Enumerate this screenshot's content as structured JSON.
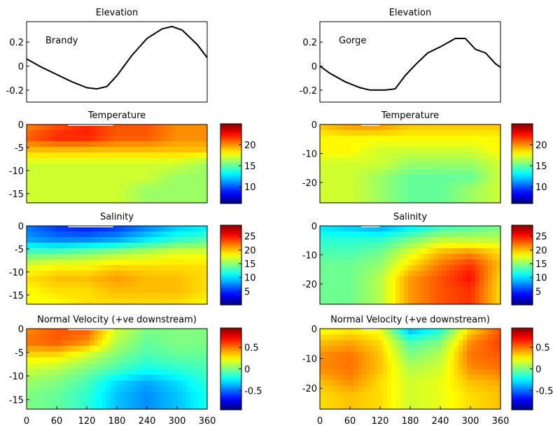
{
  "chart_data": [
    {
      "type": "line",
      "title": "Elevation",
      "annotation": "Brandy",
      "x": [
        0,
        30,
        60,
        90,
        120,
        140,
        160,
        180,
        210,
        240,
        270,
        290,
        310,
        340,
        360
      ],
      "y": [
        0.06,
        -0.01,
        -0.07,
        -0.13,
        -0.18,
        -0.19,
        -0.17,
        -0.08,
        0.09,
        0.23,
        0.31,
        0.33,
        0.3,
        0.18,
        0.07
      ],
      "xlim": [
        0,
        360
      ],
      "ylim": [
        -0.3,
        0.37
      ],
      "yticks": [
        0.2,
        0,
        -0.2
      ]
    },
    {
      "type": "line",
      "title": "Elevation",
      "annotation": "Gorge",
      "x": [
        0,
        20,
        50,
        80,
        100,
        130,
        150,
        170,
        190,
        215,
        240,
        270,
        290,
        310,
        330,
        350,
        360
      ],
      "y": [
        0.0,
        -0.06,
        -0.13,
        -0.18,
        -0.2,
        -0.2,
        -0.19,
        -0.08,
        0.01,
        0.11,
        0.16,
        0.23,
        0.23,
        0.14,
        0.11,
        0.02,
        -0.01
      ],
      "xlim": [
        0,
        360
      ],
      "ylim": [
        -0.3,
        0.37
      ],
      "yticks": [
        0.2,
        0,
        -0.2
      ]
    },
    {
      "type": "heatmap",
      "title": "Temperature",
      "xlim": [
        0,
        360
      ],
      "ylim": [
        -17,
        0
      ],
      "yticks": [
        0,
        -5,
        -10,
        -15
      ],
      "colorbar": {
        "range": [
          6,
          25
        ],
        "ticks": [
          20,
          15,
          10
        ]
      },
      "rows_depth": [
        0,
        -3,
        -6,
        -9,
        -12,
        -15,
        -17
      ],
      "cols_x": [
        0,
        60,
        120,
        180,
        240,
        300,
        360
      ],
      "values": [
        [
          20,
          21,
          22,
          21,
          21,
          20,
          20
        ],
        [
          21,
          22,
          22,
          21,
          21,
          20,
          20
        ],
        [
          19,
          19,
          19,
          19,
          19,
          19,
          19
        ],
        [
          17,
          17,
          17,
          17,
          17,
          17,
          16
        ],
        [
          17,
          17,
          17,
          17,
          17,
          16,
          16
        ],
        [
          17,
          17,
          17,
          17,
          16,
          16,
          16
        ],
        [
          17,
          17,
          17,
          17,
          16,
          16,
          16
        ]
      ]
    },
    {
      "type": "heatmap",
      "title": "Temperature",
      "xlim": [
        0,
        360
      ],
      "ylim": [
        -27,
        0
      ],
      "yticks": [
        0,
        -10,
        -20
      ],
      "colorbar": {
        "range": [
          6,
          25
        ],
        "ticks": [
          20,
          15,
          10
        ]
      },
      "rows_depth": [
        0,
        -5,
        -10,
        -15,
        -20,
        -25,
        -27
      ],
      "cols_x": [
        0,
        60,
        120,
        180,
        240,
        300,
        360
      ],
      "values": [
        [
          19,
          20,
          20,
          19,
          19,
          19,
          19
        ],
        [
          18,
          18,
          18,
          18,
          18,
          18,
          18
        ],
        [
          18,
          18,
          17,
          17,
          17,
          17,
          18
        ],
        [
          17,
          17,
          17,
          16,
          16,
          16,
          17
        ],
        [
          17,
          17,
          16,
          15,
          15,
          15,
          17
        ],
        [
          17,
          17,
          16,
          15,
          15,
          16,
          17
        ],
        [
          17,
          17,
          16,
          15,
          15,
          16,
          17
        ]
      ]
    },
    {
      "type": "heatmap",
      "title": "Salinity",
      "xlim": [
        0,
        360
      ],
      "ylim": [
        -17,
        0
      ],
      "yticks": [
        0,
        -5,
        -10,
        -15
      ],
      "colorbar": {
        "range": [
          0,
          29
        ],
        "ticks": [
          25,
          20,
          15,
          10,
          5
        ]
      },
      "rows_depth": [
        0,
        -3,
        -6,
        -9,
        -12,
        -15,
        -17
      ],
      "cols_x": [
        0,
        60,
        120,
        180,
        240,
        300,
        360
      ],
      "values": [
        [
          7,
          5,
          4,
          5,
          7,
          9,
          10
        ],
        [
          8,
          7,
          7,
          8,
          10,
          12,
          13
        ],
        [
          13,
          13,
          14,
          15,
          16,
          17,
          17
        ],
        [
          17,
          18,
          18,
          19,
          19,
          19,
          19
        ],
        [
          19,
          20,
          20,
          21,
          20,
          20,
          19
        ],
        [
          18,
          19,
          19,
          20,
          20,
          20,
          19
        ],
        [
          18,
          18,
          19,
          19,
          19,
          19,
          18
        ]
      ]
    },
    {
      "type": "heatmap",
      "title": "Salinity",
      "xlim": [
        0,
        360
      ],
      "ylim": [
        -27,
        0
      ],
      "yticks": [
        0,
        -10,
        -20
      ],
      "colorbar": {
        "range": [
          0,
          29
        ],
        "ticks": [
          25,
          20,
          15,
          10,
          5
        ]
      },
      "rows_depth": [
        0,
        -5,
        -10,
        -15,
        -20,
        -25,
        -27
      ],
      "cols_x": [
        0,
        60,
        120,
        180,
        240,
        300,
        360
      ],
      "values": [
        [
          10,
          9,
          8,
          10,
          12,
          13,
          14
        ],
        [
          12,
          12,
          12,
          14,
          16,
          16,
          16
        ],
        [
          13,
          13,
          14,
          17,
          20,
          21,
          19
        ],
        [
          14,
          14,
          15,
          19,
          22,
          24,
          20
        ],
        [
          14,
          14,
          16,
          21,
          23,
          25,
          19
        ],
        [
          14,
          14,
          16,
          21,
          23,
          24,
          19
        ],
        [
          14,
          14,
          16,
          21,
          23,
          24,
          19
        ]
      ]
    },
    {
      "type": "heatmap",
      "title": "Normal Velocity (+ve downstream)",
      "xlim": [
        0,
        360
      ],
      "ylim": [
        -17,
        0
      ],
      "yticks": [
        0,
        -5,
        -10,
        -15
      ],
      "colorbar": {
        "range": [
          -0.95,
          0.95
        ],
        "ticks": [
          0.5,
          0,
          -0.5
        ]
      },
      "rows_depth": [
        0,
        -3,
        -6,
        -9,
        -12,
        -15,
        -17
      ],
      "cols_x": [
        0,
        60,
        120,
        180,
        240,
        300,
        360
      ],
      "values": [
        [
          0.45,
          0.55,
          0.55,
          0.15,
          0.0,
          0.0,
          0.0
        ],
        [
          0.5,
          0.55,
          0.45,
          0.1,
          -0.05,
          0.0,
          0.0
        ],
        [
          0.3,
          0.3,
          0.15,
          0.0,
          -0.1,
          -0.05,
          -0.05
        ],
        [
          0.15,
          0.1,
          0.0,
          -0.1,
          -0.2,
          -0.15,
          -0.1
        ],
        [
          0.05,
          0.0,
          -0.1,
          -0.3,
          -0.4,
          -0.3,
          -0.15
        ],
        [
          0.0,
          -0.05,
          -0.15,
          -0.35,
          -0.45,
          -0.35,
          -0.2
        ],
        [
          0.0,
          -0.05,
          -0.15,
          -0.35,
          -0.45,
          -0.35,
          -0.2
        ]
      ]
    },
    {
      "type": "heatmap",
      "title": "Normal Velocity (+ve downstream)",
      "xlim": [
        0,
        360
      ],
      "ylim": [
        -27,
        0
      ],
      "yticks": [
        0,
        -10,
        -20
      ],
      "colorbar": {
        "range": [
          -0.95,
          0.95
        ],
        "ticks": [
          0.5,
          0,
          -0.5
        ]
      },
      "rows_depth": [
        0,
        -5,
        -10,
        -15,
        -20,
        -25,
        -27
      ],
      "cols_x": [
        0,
        60,
        120,
        180,
        240,
        300,
        360
      ],
      "values": [
        [
          0.2,
          0.25,
          0.2,
          -0.4,
          -0.2,
          0.3,
          0.55
        ],
        [
          0.35,
          0.4,
          0.3,
          -0.1,
          0.0,
          0.45,
          0.6
        ],
        [
          0.45,
          0.5,
          0.35,
          0.0,
          0.1,
          0.5,
          0.55
        ],
        [
          0.45,
          0.5,
          0.35,
          0.1,
          0.15,
          0.45,
          0.5
        ],
        [
          0.35,
          0.45,
          0.3,
          0.15,
          0.2,
          0.35,
          0.4
        ],
        [
          0.3,
          0.35,
          0.3,
          0.15,
          0.2,
          0.3,
          0.35
        ],
        [
          0.3,
          0.35,
          0.3,
          0.15,
          0.2,
          0.3,
          0.35
        ]
      ]
    }
  ],
  "xaxis_ticks": [
    0,
    60,
    120,
    180,
    240,
    300,
    360
  ]
}
